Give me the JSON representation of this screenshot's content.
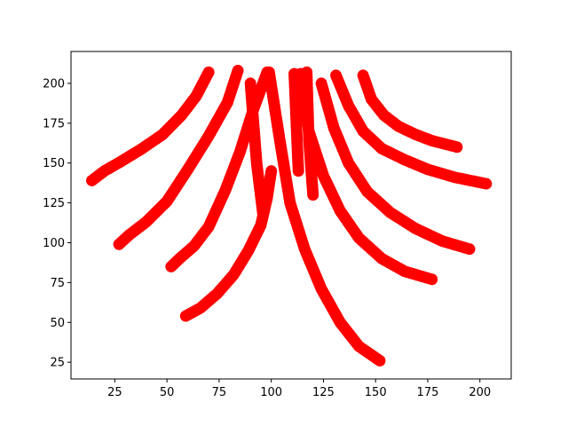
{
  "chart_data": {
    "type": "scatter",
    "title": "",
    "xlabel": "",
    "ylabel": "",
    "xlim": [
      4,
      215
    ],
    "ylim": [
      14.5,
      220
    ],
    "xticks": [
      25,
      50,
      75,
      100,
      125,
      150,
      175,
      200
    ],
    "yticks": [
      25,
      50,
      75,
      100,
      125,
      150,
      175,
      200
    ],
    "xtick_labels": [
      "25",
      "50",
      "75",
      "100",
      "125",
      "150",
      "175",
      "200"
    ],
    "ytick_labels": [
      "25",
      "50",
      "75",
      "100",
      "125",
      "150",
      "175",
      "200"
    ],
    "grid": false,
    "legend": "none",
    "marker_color": "#ff0000",
    "curves": [
      {
        "x": [
          70,
          64,
          57,
          48,
          38,
          28,
          20,
          14
        ],
        "y": [
          207,
          192,
          180,
          168,
          159,
          151,
          145,
          139
        ]
      },
      {
        "x": [
          84,
          79,
          70,
          60,
          50,
          40,
          32,
          27
        ],
        "y": [
          208,
          188,
          167,
          146,
          126,
          113,
          105,
          99
        ]
      },
      {
        "x": [
          98,
          91,
          85,
          78,
          70,
          63,
          56,
          52
        ],
        "y": [
          207,
          182,
          157,
          133,
          110,
          98,
          90,
          85
        ]
      },
      {
        "x": [
          100,
          98,
          95,
          89,
          82,
          74,
          66,
          59
        ],
        "y": [
          145,
          128,
          111,
          95,
          80,
          68,
          59,
          54
        ]
      },
      {
        "x": [
          99,
          104,
          109,
          116,
          124,
          133,
          142,
          152
        ],
        "y": [
          207,
          165,
          125,
          96,
          71,
          50,
          35,
          26
        ]
      },
      {
        "x": [
          114,
          118,
          125,
          133,
          142,
          153,
          164,
          177
        ],
        "y": [
          206,
          170,
          142,
          120,
          103,
          90,
          82,
          77
        ]
      },
      {
        "x": [
          124,
          130,
          137,
          146,
          157,
          169,
          182,
          195
        ],
        "y": [
          200,
          172,
          150,
          132,
          119,
          109,
          101,
          96
        ]
      },
      {
        "x": [
          131,
          137,
          144,
          153,
          164,
          175,
          188,
          203
        ],
        "y": [
          205,
          186,
          170,
          159,
          152,
          146,
          141,
          137
        ]
      },
      {
        "x": [
          144,
          148,
          154,
          161,
          169,
          177,
          189
        ],
        "y": [
          205,
          190,
          180,
          173,
          168,
          164,
          160
        ]
      },
      {
        "x": [
          90,
          93,
          96
        ],
        "y": [
          200,
          150,
          118
        ]
      },
      {
        "x": [
          111,
          112,
          113
        ],
        "y": [
          206,
          175,
          145
        ]
      },
      {
        "x": [
          117,
          118,
          120
        ],
        "y": [
          207,
          165,
          130
        ]
      }
    ]
  }
}
